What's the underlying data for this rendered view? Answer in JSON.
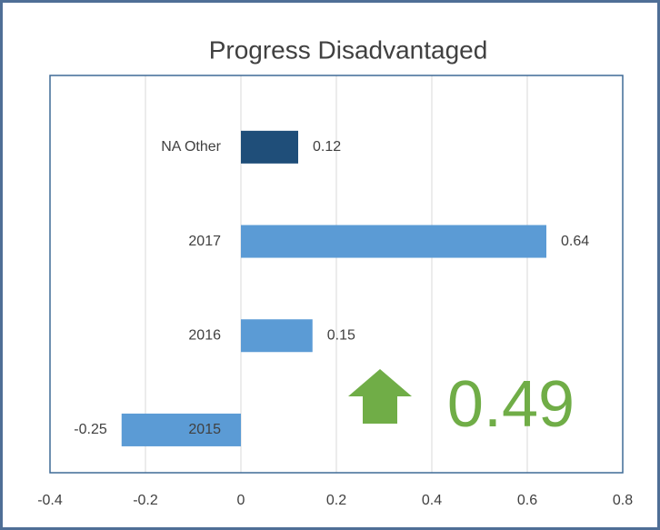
{
  "chart_data": {
    "type": "bar",
    "orientation": "horizontal",
    "title": "Progress Disadvantaged",
    "categories": [
      "NA Other",
      "2017",
      "2016",
      "2015"
    ],
    "values": [
      0.12,
      0.64,
      0.15,
      -0.25
    ],
    "colors": [
      "#1f4e79",
      "#5b9bd5",
      "#5b9bd5",
      "#5b9bd5"
    ],
    "xlim": [
      -0.4,
      0.8
    ],
    "xticks": [
      -0.4,
      -0.2,
      0,
      0.2,
      0.4,
      0.6,
      0.8
    ],
    "grid": true,
    "annotation": {
      "text": "0.49",
      "color": "#70ad47"
    }
  }
}
